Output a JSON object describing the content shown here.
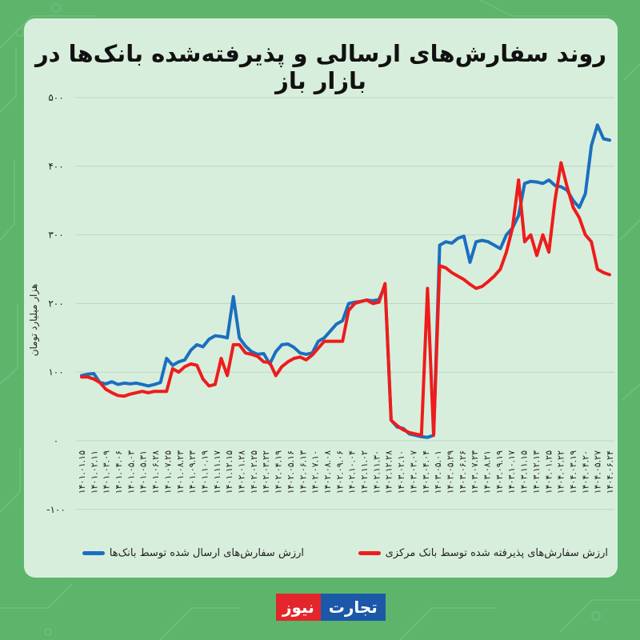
{
  "title": "روند سفارش‌های ارسالی و پذیرفته‌شده بانک‌ها در بازار باز",
  "y_axis_label": "هزار میلیارد تومان",
  "legend": [
    {
      "label": "ارزش سفارش‌های ارسال شده توسط بانک‌ها",
      "color": "#1a6fc0"
    },
    {
      "label": "ارزش سفارش‌های پذیرفته شده توسط بانک مرکزی",
      "color": "#ee1c1c"
    }
  ],
  "logo": {
    "part1": "تجارت",
    "part2": "نیوز"
  },
  "colors": {
    "background": "#5db56b",
    "card": "#d8eedc",
    "grid": "#bcd6c2",
    "series_sent": "#1a6fc0",
    "series_accepted": "#ee1c1c"
  },
  "chart_data": {
    "type": "line",
    "title": "روند سفارش‌های ارسالی و پذیرفته‌شده بانک‌ها در بازار باز",
    "xlabel": "",
    "ylabel": "هزار میلیارد تومان",
    "ylim": [
      -100,
      500
    ],
    "yticks": [
      "-۱۰۰",
      "۰",
      "۱۰۰",
      "۲۰۰",
      "۳۰۰",
      "۴۰۰",
      "۵۰۰"
    ],
    "ytick_values": [
      -100,
      0,
      100,
      200,
      300,
      400,
      500
    ],
    "grid": true,
    "legend_position": "bottom",
    "x_tick_labels": [
      "۱۴۰۱.۰۱.۱۵",
      "۱۴۰۱.۰۲.۱۱",
      "۱۴۰۱.۰۳.۰۹",
      "۱۴۰۱.۰۴.۰۶",
      "۱۴۰۱.۰۵.۰۳",
      "۱۴۰۱.۰۵.۳۱",
      "۱۴۰۱.۰۶.۲۸",
      "۱۴۰۱.۰۷.۲۵",
      "۱۴۰۱.۰۸.۲۳",
      "۱۴۰۱.۰۹.۲۳",
      "۱۴۰۱.۱۰.۱۹",
      "۱۴۰۱.۱۱.۱۷",
      "۱۴۰۱.۱۲.۱۵",
      "۱۴۰۲.۰۱.۲۸",
      "۱۴۰۲.۰۲.۲۵",
      "۱۴۰۲.۰۳.۲۲",
      "۱۴۰۲.۰۴.۱۹",
      "۱۴۰۲.۰۵.۱۶",
      "۱۴۰۲.۰۶.۱۳",
      "۱۴۰۲.۰۷.۱۰",
      "۱۴۰۲.۰۸.۰۸",
      "۱۴۰۲.۰۹.۰۶",
      "۱۴۰۲.۱۰.۰۴",
      "۱۴۰۲.۱۱.۰۲",
      "۱۴۰۲.۱۱.۳۰",
      "۱۴۰۲.۱۲.۲۸",
      "۱۴۰۳.۰۲.۱۰",
      "۱۴۰۳.۰۳.۰۷",
      "۱۴۰۳.۰۴.۰۴",
      "۱۴۰۳.۰۵.۰۱",
      "۱۴۰۳.۰۵.۲۹",
      "۱۴۰۳.۰۶.۲۶",
      "۱۴۰۳.۰۷.۲۳",
      "۱۴۰۳.۰۸.۲۱",
      "۱۴۰۳.۰۹.۱۹",
      "۱۴۰۳.۱۰.۱۷",
      "۱۴۰۳.۱۱.۱۵",
      "۱۴۰۳.۱۲.۱۳",
      "۱۴۰۴.۰۱.۲۵",
      "۱۴۰۴.۰۲.۲۲",
      "۱۴۰۴.۰۳.۱۹",
      "۱۴۰۴.۰۴.۲۰",
      "۱۴۰۴.۰۵.۲۷",
      "۱۴۰۴.۰۶.۲۴"
    ],
    "x": [
      0,
      1,
      2,
      3,
      4,
      5,
      6,
      7,
      8,
      9,
      10,
      11,
      12,
      13,
      14,
      15,
      16,
      17,
      18,
      19,
      20,
      21,
      22,
      23,
      24,
      25,
      26,
      27,
      28,
      29,
      30,
      31,
      32,
      33,
      34,
      35,
      36,
      37,
      38,
      39,
      40,
      41,
      42,
      43,
      44,
      45,
      46,
      47,
      48,
      49,
      50,
      51,
      52,
      53,
      54,
      55,
      56,
      57,
      58,
      59,
      60,
      61,
      62,
      63,
      64,
      65,
      66,
      67,
      68,
      69,
      70,
      71,
      72,
      73,
      74,
      75,
      76,
      77,
      78,
      79,
      80,
      81,
      82,
      83,
      84,
      85,
      86,
      87
    ],
    "series": [
      {
        "name": "ارزش سفارش‌های ارسال شده توسط بانک‌ها",
        "color": "#1a6fc0",
        "values": [
          95,
          97,
          98,
          85,
          83,
          86,
          82,
          84,
          83,
          84,
          82,
          80,
          82,
          85,
          120,
          110,
          115,
          118,
          132,
          140,
          137,
          148,
          153,
          152,
          150,
          210,
          150,
          138,
          130,
          126,
          127,
          112,
          130,
          140,
          141,
          136,
          128,
          126,
          128,
          145,
          150,
          160,
          170,
          175,
          200,
          202,
          203,
          205,
          204,
          206,
          226,
          30,
          20,
          18,
          10,
          8,
          6,
          5,
          8,
          285,
          290,
          288,
          295,
          298,
          260,
          290,
          292,
          290,
          285,
          280,
          300,
          310,
          328,
          375,
          378,
          377,
          375,
          380,
          372,
          370,
          365,
          350,
          340,
          360,
          430,
          460,
          440,
          438
        ]
      },
      {
        "name": "ارزش سفارش‌های پذیرفته شده توسط بانک مرکزی",
        "color": "#ee1c1c",
        "values": [
          93,
          93,
          90,
          85,
          75,
          70,
          66,
          65,
          68,
          70,
          72,
          70,
          72,
          72,
          72,
          105,
          100,
          108,
          112,
          110,
          90,
          80,
          82,
          120,
          95,
          140,
          140,
          128,
          126,
          123,
          115,
          114,
          95,
          108,
          115,
          120,
          122,
          118,
          125,
          135,
          145,
          145,
          145,
          145,
          190,
          200,
          203,
          205,
          200,
          202,
          229,
          30,
          22,
          16,
          12,
          10,
          8,
          222,
          8,
          255,
          252,
          245,
          240,
          235,
          228,
          222,
          225,
          232,
          240,
          250,
          275,
          310,
          380,
          290,
          300,
          270,
          300,
          275,
          350,
          405,
          370,
          340,
          325,
          300,
          290,
          250,
          245,
          242
        ]
      }
    ]
  }
}
